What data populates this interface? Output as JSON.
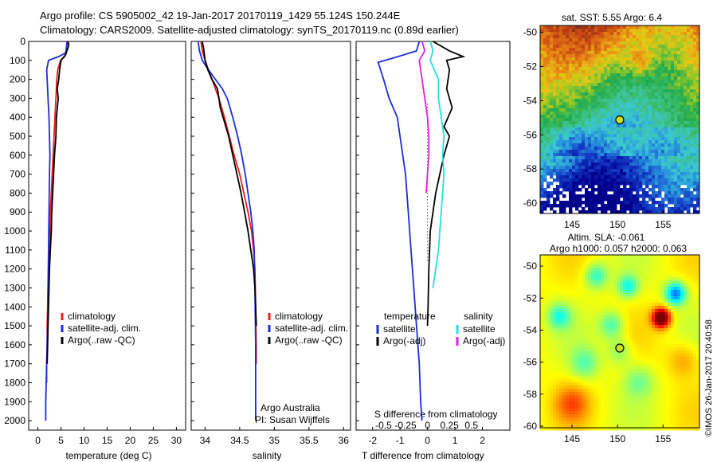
{
  "header": {
    "line1": "Argo profile: CS 5905002_42 19-Jan-2017 20170119_1429 55.124S 150.244E",
    "line2": "Climatology: CARS2009. Satellite-adjusted climatology: synTS_20170119.nc (0.89d earlier)"
  },
  "footer": {
    "imos": "©IMOS 26-Jan-2017 20:40:58"
  },
  "colors": {
    "climatology": "#e8201c",
    "satellite": "#1c2cdb",
    "argo": "#000000",
    "satellite_salinity": "#22e0e0",
    "argo_salinity": "#e020e0"
  },
  "chart_data": [
    {
      "id": "temperature",
      "type": "line",
      "xlabel": "temperature (deg C)",
      "ylabel": "",
      "xlim": [
        -2,
        32
      ],
      "ylim": [
        2050,
        0
      ],
      "xticks": [
        0,
        5,
        10,
        15,
        20,
        25,
        30
      ],
      "yticks": [
        0,
        100,
        200,
        300,
        400,
        500,
        600,
        700,
        800,
        900,
        1000,
        1100,
        1200,
        1300,
        1400,
        1500,
        1600,
        1700,
        1800,
        1900,
        2000
      ],
      "legend": [
        "climatology",
        "satellite-adj. clim.",
        "Argo(..raw -QC)"
      ],
      "series": [
        {
          "name": "climatology",
          "color": "#e8201c",
          "x": [
            6.3,
            6.1,
            5.8,
            4.9,
            4.3,
            4.1,
            3.9,
            3.7,
            3.5,
            3.3,
            3.1,
            2.9,
            2.7,
            2.6,
            2.5,
            2.3,
            2.2,
            2.1,
            2.0,
            2.0,
            1.9,
            1.9
          ],
          "y": [
            0,
            50,
            80,
            100,
            150,
            200,
            300,
            400,
            500,
            600,
            700,
            800,
            900,
            1000,
            1100,
            1200,
            1300,
            1400,
            1500,
            1600,
            1700,
            1800
          ]
        },
        {
          "name": "satellite-adj. clim.",
          "color": "#1c2cdb",
          "x": [
            6.4,
            6.0,
            4.5,
            2.3,
            1.9,
            2.0,
            2.2,
            2.4,
            2.5,
            2.6,
            2.5,
            2.4,
            2.3,
            2.2,
            2.1,
            2.0,
            1.9,
            1.8,
            1.7,
            1.7
          ],
          "y": [
            0,
            60,
            80,
            100,
            150,
            200,
            300,
            400,
            500,
            600,
            700,
            900,
            1100,
            1300,
            1500,
            1600,
            1700,
            1800,
            1900,
            2000
          ]
        },
        {
          "name": "Argo(..raw -QC)",
          "color": "#000000",
          "x": [
            6.5,
            6.7,
            6.0,
            5.0,
            4.7,
            4.5,
            4.2,
            4.4,
            4.0,
            3.9,
            3.6,
            3.4,
            3.2,
            3.0,
            2.9,
            2.7,
            2.5,
            2.4,
            2.3,
            2.2,
            2.1,
            2.0
          ],
          "y": [
            0,
            20,
            70,
            100,
            150,
            200,
            250,
            300,
            400,
            500,
            600,
            700,
            800,
            900,
            1000,
            1100,
            1200,
            1300,
            1400,
            1500,
            1600,
            1700
          ]
        }
      ]
    },
    {
      "id": "salinity",
      "type": "line",
      "xlabel": "salinity",
      "ylabel": "",
      "xlim": [
        33.8,
        36.1
      ],
      "ylim": [
        2050,
        0
      ],
      "xticks": [
        34,
        34.5,
        35,
        35.5,
        36
      ],
      "legend": [
        "climatology",
        "satellite-adj. clim.",
        "Argo(..raw -QC)"
      ],
      "annotation": [
        "Argo Australia",
        "PI: Susan Wijffels"
      ],
      "series": [
        {
          "name": "climatology",
          "color": "#e8201c",
          "x": [
            33.94,
            33.96,
            34.0,
            34.05,
            34.1,
            34.15,
            34.2,
            34.28,
            34.35,
            34.42,
            34.5,
            34.56,
            34.62,
            34.67,
            34.7,
            34.72,
            34.73,
            34.74,
            34.74
          ],
          "y": [
            0,
            50,
            100,
            150,
            200,
            250,
            300,
            400,
            500,
            600,
            700,
            800,
            900,
            1000,
            1100,
            1200,
            1400,
            1600,
            1700
          ]
        },
        {
          "name": "satellite-adj. clim.",
          "color": "#1c2cdb",
          "x": [
            33.9,
            33.92,
            33.96,
            34.05,
            34.15,
            34.25,
            34.32,
            34.4,
            34.47,
            34.53,
            34.58,
            34.62,
            34.66,
            34.69,
            34.71,
            34.72,
            34.73,
            34.73
          ],
          "y": [
            0,
            50,
            100,
            150,
            200,
            250,
            300,
            400,
            500,
            600,
            700,
            800,
            900,
            1000,
            1100,
            1300,
            1600,
            2000
          ]
        },
        {
          "name": "Argo(..raw -QC)",
          "color": "#000000",
          "x": [
            33.96,
            33.98,
            34.0,
            34.04,
            34.1,
            34.18,
            34.2,
            34.22,
            34.3,
            34.34,
            34.4,
            34.46,
            34.52,
            34.57,
            34.62,
            34.66,
            34.7,
            34.72,
            34.73,
            34.74
          ],
          "y": [
            0,
            40,
            100,
            150,
            200,
            250,
            300,
            350,
            450,
            500,
            600,
            700,
            800,
            900,
            1000,
            1100,
            1200,
            1300,
            1400,
            1500
          ]
        }
      ]
    },
    {
      "id": "difference",
      "type": "line",
      "xlabel": "T difference from climatology",
      "xlabel_top": "S difference from climatology",
      "xlim": [
        -2.6,
        3.0
      ],
      "ylim": [
        2050,
        0
      ],
      "xticks": [
        -2,
        -1,
        0,
        1,
        2
      ],
      "sticks": [
        {
          "label": "-0.5",
          "t": -1.6
        },
        {
          "label": "-0.25",
          "t": -0.8
        },
        {
          "label": "0",
          "t": 0
        },
        {
          "label": "0.25",
          "t": 0.8
        },
        {
          "label": "0.5",
          "t": 1.6
        }
      ],
      "legend_temperature_title": "temperature",
      "legend_salinity_title": "salinity",
      "legend": [
        "satellite",
        "Argo(-adj)",
        "satellite",
        "Argo(-adj)"
      ],
      "series": [
        {
          "name": "temperature satellite",
          "color": "#1c2cdb",
          "x": [
            -0.3,
            -0.4,
            -1.3,
            -1.8,
            -1.6,
            -1.4,
            -1.1,
            -1.0,
            -0.8,
            -0.7,
            -0.6,
            -0.5,
            -0.4,
            -0.3,
            -0.25,
            -0.2
          ],
          "y": [
            0,
            50,
            90,
            110,
            200,
            300,
            400,
            500,
            700,
            900,
            1100,
            1300,
            1500,
            1700,
            1900,
            2000
          ]
        },
        {
          "name": "temperature Argo(-adj)",
          "color": "#000000",
          "x": [
            0.2,
            0.8,
            1.3,
            0.7,
            0.8,
            0.7,
            0.9,
            0.6,
            0.8,
            0.6,
            0.3,
            0.1,
            0.05,
            0.02,
            0.0
          ],
          "y": [
            0,
            50,
            80,
            100,
            150,
            250,
            350,
            450,
            500,
            600,
            800,
            1000,
            1200,
            1400,
            1500
          ]
        },
        {
          "name": "salinity satellite",
          "color": "#22e0e0",
          "x": [
            0.1,
            0.2,
            0.1,
            0.4,
            0.4,
            0.5,
            0.6,
            0.55,
            0.6,
            0.55,
            0.5,
            0.45,
            0.4,
            0.3,
            0.2
          ],
          "y": [
            0,
            50,
            100,
            200,
            300,
            400,
            500,
            600,
            700,
            800,
            900,
            1000,
            1100,
            1200,
            1300
          ]
        },
        {
          "name": "salinity Argo(-adj)",
          "color": "#e020e0",
          "x": [
            -0.2,
            -0.1,
            -0.3,
            -0.2,
            -0.1,
            0.0,
            0.05,
            0.05,
            0.0,
            -0.05
          ],
          "y": [
            0,
            50,
            100,
            200,
            300,
            400,
            500,
            600,
            700,
            800
          ]
        }
      ]
    },
    {
      "id": "sst_map",
      "type": "heatmap",
      "title": "sat. SST: 5.55 Argo: 6.4",
      "xticks": [
        145,
        150,
        155
      ],
      "yticks": [
        -50,
        -52,
        -54,
        -56,
        -58,
        -60
      ],
      "xlim": [
        141.5,
        159
      ],
      "ylim": [
        -60.6,
        -49.6
      ],
      "marker": {
        "lon": 150.244,
        "lat": -55.124
      }
    },
    {
      "id": "sla_map",
      "type": "heatmap",
      "title": "Altim. SLA: -0.061",
      "subtitle": "Argo h1000: 0.057 h2000: 0.063",
      "xticks": [
        145,
        150,
        155
      ],
      "yticks": [
        -50,
        -52,
        -54,
        -56,
        -58,
        -60
      ],
      "xlim": [
        141.5,
        159
      ],
      "ylim": [
        -60.1,
        -49.3
      ],
      "marker": {
        "lon": 150.244,
        "lat": -55.124
      }
    }
  ]
}
